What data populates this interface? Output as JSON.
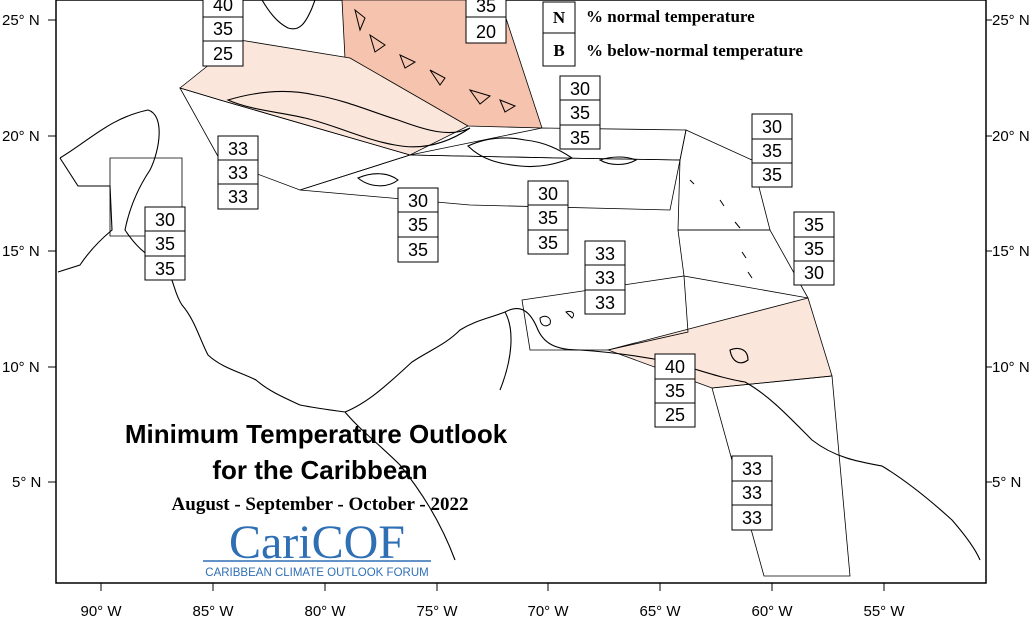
{
  "title_line1": "Minimum Temperature Outlook",
  "title_line2": "for the Caribbean",
  "period": "August - September - October - 2022",
  "logo": {
    "name": "CariCOF",
    "tagline": "CARIBBEAN CLIMATE OUTLOOK FORUM",
    "color": "#2f6fb4"
  },
  "legend": [
    {
      "key": "N",
      "text": "% normal temperature"
    },
    {
      "key": "B",
      "text": "% below-normal temperature"
    }
  ],
  "lat_labels": [
    "25° N",
    "20° N",
    "15° N",
    "10° N",
    "5° N"
  ],
  "lon_labels": [
    "90° W",
    "85° W",
    "80° W",
    "75° W",
    "70° W",
    "65° W",
    "60° W",
    "55° W"
  ],
  "colors": {
    "shade_light": "#fbe6dc",
    "shade_medium": "#f6c4ae",
    "border": "#000000"
  },
  "probability_boxes": [
    {
      "region": "bahamas-north-west",
      "values": [
        "40",
        "35",
        "25"
      ]
    },
    {
      "region": "bahamas-south-east",
      "values": [
        "35",
        "20"
      ]
    },
    {
      "region": "cayman",
      "values": [
        "33",
        "33",
        "33"
      ]
    },
    {
      "region": "belize",
      "values": [
        "30",
        "35",
        "35"
      ]
    },
    {
      "region": "jamaica",
      "values": [
        "30",
        "35",
        "35"
      ]
    },
    {
      "region": "hispaniola",
      "values": [
        "30",
        "35",
        "35"
      ]
    },
    {
      "region": "puerto-rico",
      "values": [
        "30",
        "35",
        "35"
      ]
    },
    {
      "region": "leeward-islands",
      "values": [
        "30",
        "35",
        "35"
      ]
    },
    {
      "region": "windward-islands",
      "values": [
        "35",
        "35",
        "30"
      ]
    },
    {
      "region": "abc-islands",
      "values": [
        "33",
        "33",
        "33"
      ]
    },
    {
      "region": "trinidad-tobago",
      "values": [
        "40",
        "35",
        "25"
      ]
    },
    {
      "region": "guianas",
      "values": [
        "33",
        "33",
        "33"
      ]
    }
  ]
}
